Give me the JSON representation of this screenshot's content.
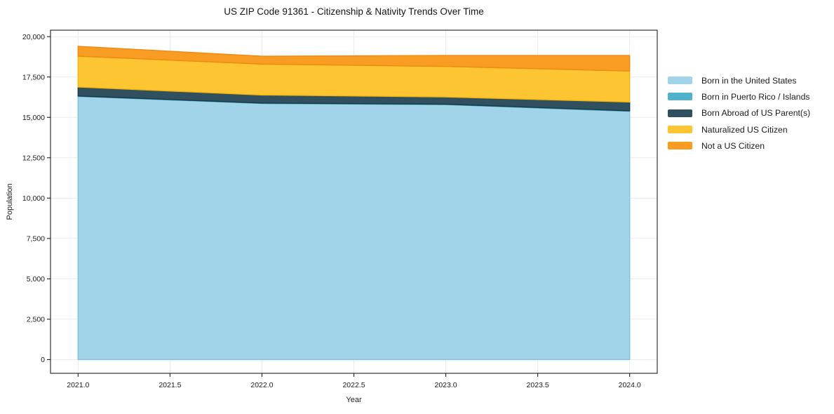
{
  "title": "US ZIP Code 91361 - Citizenship & Nativity Trends Over Time",
  "chart_data": {
    "type": "area",
    "stacked": true,
    "x": [
      2021,
      2022,
      2023,
      2024
    ],
    "series": [
      {
        "name": "Born in the United States",
        "values": [
          16300,
          15860,
          15790,
          15380
        ],
        "fill": "#a1d3e9",
        "edge": "#79c4e2"
      },
      {
        "name": "Born in Puerto Rico / Islands",
        "values": [
          25,
          25,
          25,
          25
        ],
        "fill": "#50b2ca",
        "edge": "#3ba3bd"
      },
      {
        "name": "Born Abroad of US Parent(s)",
        "values": [
          555,
          500,
          450,
          545
        ],
        "fill": "#30505f",
        "edge": "#1d3948"
      },
      {
        "name": "Naturalized US Citizen",
        "values": [
          1910,
          1915,
          1890,
          1920
        ],
        "fill": "#fdc532",
        "edge": "#f3b40c"
      },
      {
        "name": "Not a US Citizen",
        "values": [
          610,
          490,
          680,
          960
        ],
        "fill": "#f89c24",
        "edge": "#ee8a10"
      }
    ],
    "xlabel": "Year",
    "ylabel": "Population",
    "xlim": [
      2020.85,
      2024.15
    ],
    "ylim": [
      -850,
      20400
    ],
    "xticks": [
      {
        "v": 2021.0,
        "label": "2021.0"
      },
      {
        "v": 2021.5,
        "label": "2021.5"
      },
      {
        "v": 2022.0,
        "label": "2022.0"
      },
      {
        "v": 2022.5,
        "label": "2022.5"
      },
      {
        "v": 2023.0,
        "label": "2023.0"
      },
      {
        "v": 2023.5,
        "label": "2023.5"
      },
      {
        "v": 2024.0,
        "label": "2024.0"
      }
    ],
    "yticks": [
      {
        "v": 0,
        "label": "0"
      },
      {
        "v": 2500,
        "label": "2,500"
      },
      {
        "v": 5000,
        "label": "5,000"
      },
      {
        "v": 7500,
        "label": "7,500"
      },
      {
        "v": 10000,
        "label": "10,000"
      },
      {
        "v": 12500,
        "label": "12,500"
      },
      {
        "v": 15000,
        "label": "15,000"
      },
      {
        "v": 17500,
        "label": "17,500"
      },
      {
        "v": 20000,
        "label": "20,000"
      }
    ],
    "grid": true,
    "grid_color": "#ebebeb",
    "axis_color": "#1f1f1f",
    "text_color": "#1a1a1a",
    "legend_position": "right-outside"
  }
}
